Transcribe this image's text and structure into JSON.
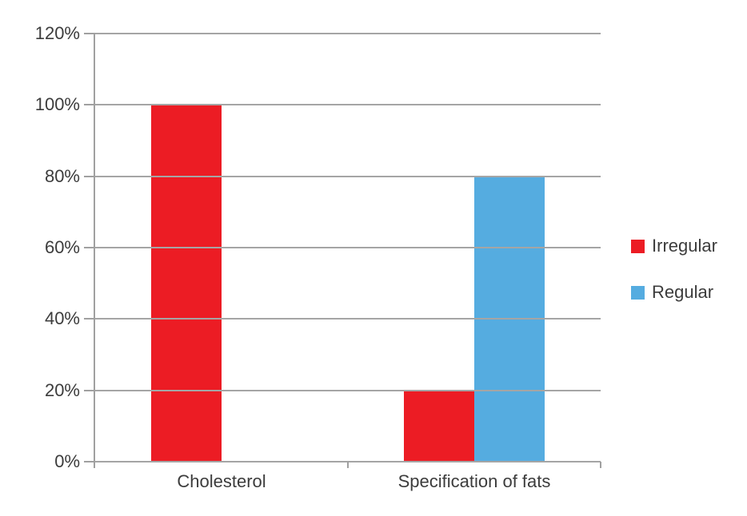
{
  "chart_data": {
    "type": "bar",
    "title": "",
    "xlabel": "",
    "ylabel": "",
    "categories": [
      "Cholesterol",
      "Specification of fats"
    ],
    "series": [
      {
        "name": "Irregular",
        "color": "#EC1C24",
        "values": [
          100,
          20
        ]
      },
      {
        "name": "Regular",
        "color": "#55ACE0",
        "values": [
          0,
          80
        ]
      }
    ],
    "y_axis": {
      "unit": "percent",
      "min": 0,
      "max": 120,
      "step": 20,
      "tick_labels": [
        "0%",
        "20%",
        "40%",
        "60%",
        "80%",
        "100%",
        "120%"
      ]
    },
    "ylim": [
      0,
      120
    ],
    "grid": true,
    "legend_position": "right"
  },
  "style": {
    "grid_color": "#A5A5A5",
    "axis_color": "#A0A0A0",
    "text_color": "#3C3C3C",
    "background": "#FFFFFF"
  }
}
